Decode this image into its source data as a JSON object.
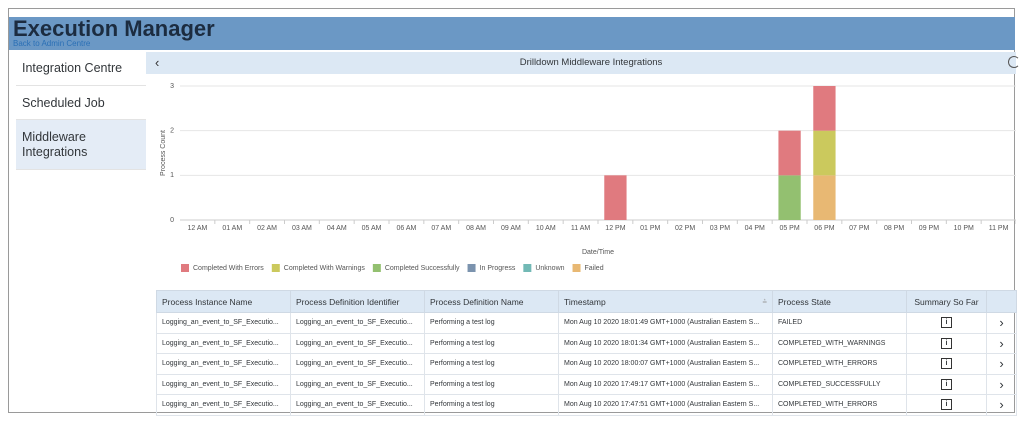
{
  "header": {
    "title": "Execution Manager",
    "back_link": "Back to Admin Centre"
  },
  "sidebar": {
    "items": [
      "Integration Centre",
      "Scheduled Job",
      "Middleware Integrations"
    ]
  },
  "panel": {
    "title": "Drilldown Middleware Integrations"
  },
  "chart_data": {
    "type": "bar",
    "stacked": true,
    "y_label": "Process Count",
    "x_label": "Date/Time",
    "legend": "bottom",
    "grid": true,
    "categories": [
      "12 AM",
      "01 AM",
      "02 AM",
      "03 AM",
      "04 AM",
      "05 AM",
      "06 AM",
      "07 AM",
      "08 AM",
      "09 AM",
      "10 AM",
      "11 AM",
      "12 PM",
      "01 PM",
      "02 PM",
      "03 PM",
      "04 PM",
      "05 PM",
      "06 PM",
      "07 PM",
      "08 PM",
      "09 PM",
      "10 PM",
      "11 PM"
    ],
    "series": [
      {
        "name": "Completed With Errors",
        "color": "#e07a7f",
        "values": [
          0,
          0,
          0,
          0,
          0,
          0,
          0,
          0,
          0,
          0,
          0,
          0,
          1,
          0,
          0,
          0,
          0,
          1,
          1,
          0,
          0,
          0,
          0,
          0
        ]
      },
      {
        "name": "Completed With Warnings",
        "color": "#cbc95d",
        "values": [
          0,
          0,
          0,
          0,
          0,
          0,
          0,
          0,
          0,
          0,
          0,
          0,
          0,
          0,
          0,
          0,
          0,
          0,
          1,
          0,
          0,
          0,
          0,
          0
        ]
      },
      {
        "name": "Completed Successfully",
        "color": "#93c070",
        "values": [
          0,
          0,
          0,
          0,
          0,
          0,
          0,
          0,
          0,
          0,
          0,
          0,
          0,
          0,
          0,
          0,
          0,
          1,
          0,
          0,
          0,
          0,
          0,
          0
        ]
      },
      {
        "name": "In Progress",
        "color": "#7b93ae",
        "values": [
          0,
          0,
          0,
          0,
          0,
          0,
          0,
          0,
          0,
          0,
          0,
          0,
          0,
          0,
          0,
          0,
          0,
          0,
          0,
          0,
          0,
          0,
          0,
          0
        ]
      },
      {
        "name": "Unknown",
        "color": "#72b9b5",
        "values": [
          0,
          0,
          0,
          0,
          0,
          0,
          0,
          0,
          0,
          0,
          0,
          0,
          0,
          0,
          0,
          0,
          0,
          0,
          0,
          0,
          0,
          0,
          0,
          0
        ]
      },
      {
        "name": "Failed",
        "color": "#e8b873",
        "values": [
          0,
          0,
          0,
          0,
          0,
          0,
          0,
          0,
          0,
          0,
          0,
          0,
          0,
          0,
          0,
          0,
          0,
          0,
          1,
          0,
          0,
          0,
          0,
          0
        ]
      }
    ],
    "ylim": [
      0,
      3
    ],
    "yticks": [
      0,
      1,
      2,
      3
    ]
  },
  "table": {
    "columns": [
      "Process Instance Name",
      "Process Definition Identifier",
      "Process Definition Name",
      "Timestamp",
      "Process State",
      "Summary So Far"
    ],
    "rows": [
      [
        "Logging_an_event_to_SF_Executio...",
        "Logging_an_event_to_SF_Executio...",
        "Performing a test log",
        "Mon Aug 10 2020 18:01:49 GMT+1000 (Australian Eastern S...",
        "FAILED"
      ],
      [
        "Logging_an_event_to_SF_Executio...",
        "Logging_an_event_to_SF_Executio...",
        "Performing a test log",
        "Mon Aug 10 2020 18:01:34 GMT+1000 (Australian Eastern S...",
        "COMPLETED_WITH_WARNINGS"
      ],
      [
        "Logging_an_event_to_SF_Executio...",
        "Logging_an_event_to_SF_Executio...",
        "Performing a test log",
        "Mon Aug 10 2020 18:00:07 GMT+1000 (Australian Eastern S...",
        "COMPLETED_WITH_ERRORS"
      ],
      [
        "Logging_an_event_to_SF_Executio...",
        "Logging_an_event_to_SF_Executio...",
        "Performing a test log",
        "Mon Aug 10 2020 17:49:17 GMT+1000 (Australian Eastern S...",
        "COMPLETED_SUCCESSFULLY"
      ],
      [
        "Logging_an_event_to_SF_Executio...",
        "Logging_an_event_to_SF_Executio...",
        "Performing a test log",
        "Mon Aug 10 2020 17:47:51 GMT+1000 (Australian Eastern S...",
        "COMPLETED_WITH_ERRORS"
      ]
    ]
  }
}
